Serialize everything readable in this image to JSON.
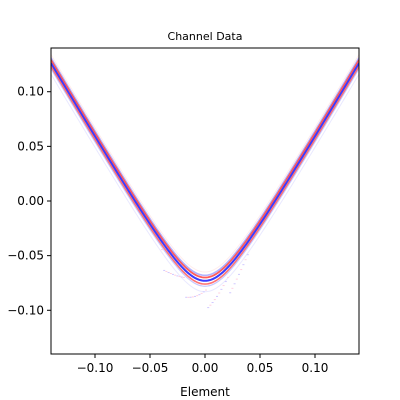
{
  "chart_data": {
    "type": "heatmap",
    "title": "Channel Data",
    "xlabel": "Element",
    "ylabel": "",
    "xlim": [
      -0.14,
      0.14
    ],
    "ylim": [
      -0.14,
      0.14
    ],
    "y_inverted": false,
    "xticks": [
      -0.1,
      -0.05,
      0.0,
      0.05,
      0.1
    ],
    "xtick_labels": [
      "−0.10",
      "−0.05",
      "0.00",
      "0.05",
      "0.10"
    ],
    "yticks": [
      0.1,
      0.05,
      0.0,
      -0.05,
      -0.1
    ],
    "ytick_labels": [
      "0.10",
      "0.05",
      "0.00",
      "−0.05",
      "−0.10"
    ],
    "colormap": [
      "#0000ff",
      "#ffffff",
      "#ff0000"
    ],
    "grid": false,
    "curve": {
      "shape": "hyperbola",
      "apex_x": 0.0,
      "apex_y": -0.073,
      "points": [
        [
          -0.14,
          0.126
        ],
        [
          -0.12,
          0.088
        ],
        [
          -0.1,
          0.048
        ],
        [
          -0.08,
          0.008
        ],
        [
          -0.06,
          -0.028
        ],
        [
          -0.04,
          -0.052
        ],
        [
          -0.02,
          -0.068
        ],
        [
          0.0,
          -0.073
        ],
        [
          0.02,
          -0.068
        ],
        [
          0.04,
          -0.052
        ],
        [
          0.06,
          -0.028
        ],
        [
          0.08,
          0.008
        ],
        [
          0.1,
          0.048
        ],
        [
          0.12,
          0.088
        ],
        [
          0.14,
          0.126
        ]
      ]
    }
  }
}
